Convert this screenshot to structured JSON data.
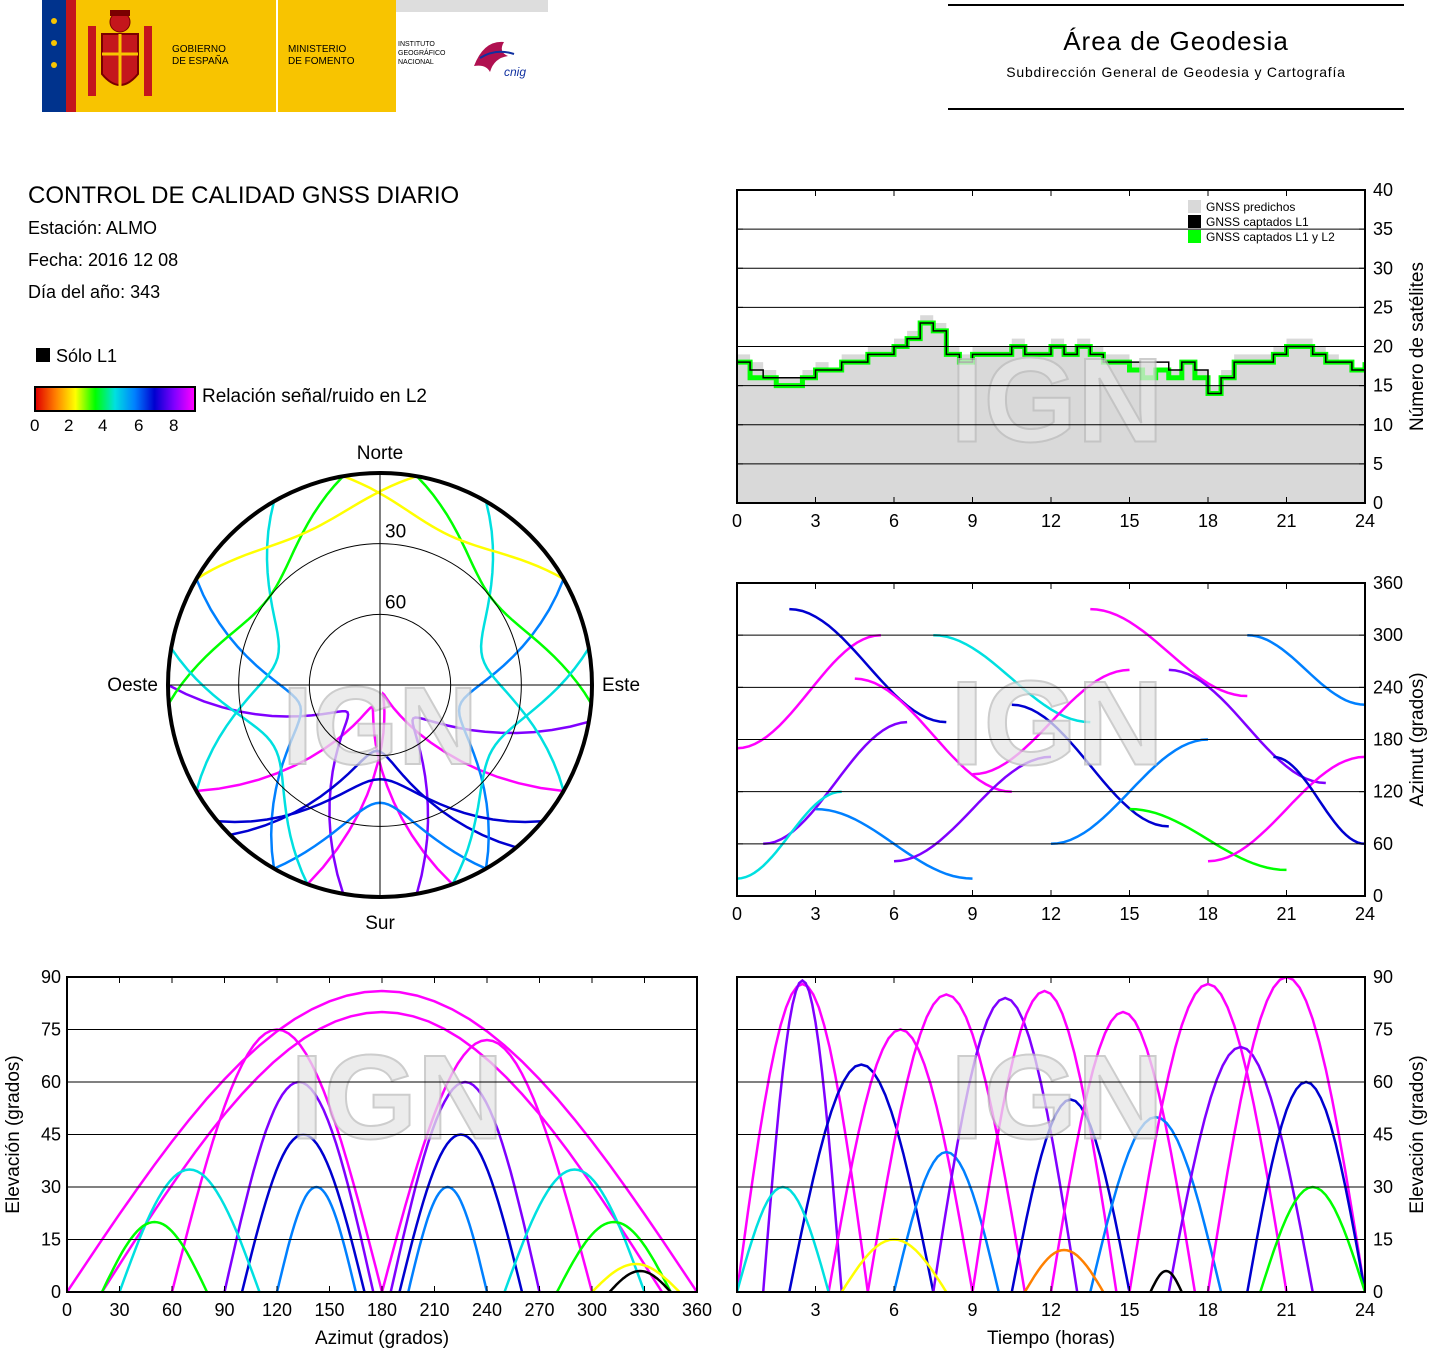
{
  "header": {
    "gob_line1": "GOBIERNO",
    "gob_line2": "DE ESPAÑA",
    "min_line1": "MINISTERIO",
    "min_line2": "DE FOMENTO",
    "ign_line1": "INSTITUTO",
    "ign_line2": "GEOGRÁFICO",
    "ign_line3": "NACIONAL",
    "cnig": "cnig",
    "area_title": "Área de Geodesia",
    "area_subtitle": "Subdirección General de Geodesia y Cartografía"
  },
  "info": {
    "title": "CONTROL DE CALIDAD GNSS DIARIO",
    "station": "Estación: ALMO",
    "date": "Fecha: 2016 12 08",
    "doy": "Día del año: 343"
  },
  "legend": {
    "only_l1": "Sólo L1",
    "snr_label": "Relación señal/ruido en L2",
    "snr_ticks": [
      "0",
      "2",
      "4",
      "6",
      "8"
    ]
  },
  "watermark": "IGN",
  "colors": {
    "predicted": "#d9d9d9",
    "l1": "#000000",
    "l1l2": "#00ff00",
    "snr_scale": [
      "#e00000",
      "#ff8000",
      "#ffff00",
      "#00ff00",
      "#00e0e0",
      "#0080ff",
      "#0000d0",
      "#8000ff",
      "#ff00ff"
    ]
  },
  "chart_data": [
    {
      "id": "satcount",
      "type": "area",
      "x": [
        0,
        0.5,
        1,
        1.5,
        2,
        2.5,
        3,
        3.5,
        4,
        4.5,
        5,
        5.5,
        6,
        6.5,
        7,
        7.5,
        8,
        8.5,
        9,
        9.5,
        10,
        10.5,
        11,
        11.5,
        12,
        12.5,
        13,
        13.5,
        14,
        14.5,
        15,
        15.5,
        16,
        16.5,
        17,
        17.5,
        18,
        18.5,
        19,
        19.5,
        20,
        20.5,
        21,
        21.5,
        22,
        22.5,
        23,
        23.5,
        24
      ],
      "series": [
        {
          "name": "GNSS predichos",
          "values": [
            19,
            18,
            17,
            16,
            16,
            17,
            18,
            17,
            19,
            19,
            20,
            20,
            21,
            22,
            24,
            23,
            20,
            19,
            20,
            20,
            20,
            21,
            20,
            20,
            21,
            20,
            21,
            20,
            19,
            19,
            18,
            18,
            17,
            17,
            18,
            17,
            15,
            17,
            19,
            19,
            19,
            20,
            21,
            21,
            20,
            19,
            18,
            17,
            18
          ]
        },
        {
          "name": "GNSS captados L1",
          "values": [
            18,
            17,
            16,
            16,
            16,
            16,
            17,
            17,
            18,
            18,
            19,
            19,
            20,
            21,
            23,
            22,
            19,
            18,
            19,
            19,
            19,
            20,
            19,
            19,
            20,
            19,
            20,
            19,
            18,
            18,
            18,
            18,
            18,
            17,
            18,
            17,
            14,
            16,
            18,
            18,
            18,
            19,
            20,
            20,
            19,
            18,
            18,
            17,
            18
          ]
        },
        {
          "name": "GNSS captados L1 y L2",
          "values": [
            18,
            16,
            16,
            15,
            15,
            16,
            17,
            17,
            18,
            18,
            19,
            19,
            20,
            21,
            23,
            22,
            19,
            18,
            19,
            19,
            19,
            20,
            19,
            19,
            20,
            19,
            20,
            19,
            18,
            18,
            17,
            16,
            17,
            16,
            18,
            16,
            14,
            16,
            18,
            18,
            18,
            19,
            20,
            20,
            19,
            18,
            18,
            17,
            18
          ]
        }
      ],
      "xlim": [
        0,
        24
      ],
      "ylim": [
        0,
        40
      ],
      "xticks": [
        "0",
        "3",
        "6",
        "9",
        "12",
        "15",
        "18",
        "21",
        "24"
      ],
      "yticks": [
        "0",
        "5",
        "10",
        "15",
        "20",
        "25",
        "30",
        "35",
        "40"
      ],
      "ylabel": "Número de satélites",
      "grid": true,
      "legend_position": "top-right"
    },
    {
      "id": "skyplot",
      "type": "scatter",
      "projection": "polar-azimuth-elevation",
      "labels": {
        "north": "Norte",
        "south": "Sur",
        "east": "Este",
        "west": "Oeste"
      },
      "rings": [
        "30",
        "60"
      ],
      "tracks": [
        {
          "az_start": 120,
          "az_end": 200,
          "el_max": 86,
          "snr": 8
        },
        {
          "az_start": 160,
          "az_end": 240,
          "el_max": 80,
          "snr": 8
        },
        {
          "az_start": 100,
          "az_end": 170,
          "el_max": 70,
          "snr": 7
        },
        {
          "az_start": 190,
          "az_end": 270,
          "el_max": 72,
          "snr": 7
        },
        {
          "az_start": 140,
          "az_end": 225,
          "el_max": 62,
          "snr": 6
        },
        {
          "az_start": 60,
          "az_end": 150,
          "el_max": 55,
          "snr": 5
        },
        {
          "az_start": 210,
          "az_end": 300,
          "el_max": 55,
          "snr": 5
        },
        {
          "az_start": 30,
          "az_end": 120,
          "el_max": 45,
          "snr": 4
        },
        {
          "az_start": 240,
          "az_end": 330,
          "el_max": 45,
          "snr": 4
        },
        {
          "az_start": 10,
          "az_end": 95,
          "el_max": 30,
          "snr": 3
        },
        {
          "az_start": 265,
          "az_end": 350,
          "el_max": 30,
          "snr": 3
        },
        {
          "az_start": 350,
          "az_end": 60,
          "el_max": 20,
          "snr": 2
        },
        {
          "az_start": 300,
          "az_end": 10,
          "el_max": 18,
          "snr": 2
        },
        {
          "az_start": 130,
          "az_end": 230,
          "el_max": 50,
          "snr": 6
        },
        {
          "az_start": 150,
          "az_end": 210,
          "el_max": 40,
          "snr": 5
        },
        {
          "az_start": 80,
          "az_end": 160,
          "el_max": 35,
          "snr": 4
        },
        {
          "az_start": 200,
          "az_end": 280,
          "el_max": 38,
          "snr": 4
        }
      ]
    },
    {
      "id": "azimuth_time",
      "type": "scatter",
      "xlim": [
        0,
        24
      ],
      "ylim": [
        0,
        360
      ],
      "xticks": [
        "0",
        "3",
        "6",
        "9",
        "12",
        "15",
        "18",
        "21",
        "24"
      ],
      "yticks": [
        "0",
        "60",
        "120",
        "180",
        "240",
        "300",
        "360"
      ],
      "ylabel": "Azimut (grados)",
      "grid": true,
      "tracks": [
        {
          "t0": 0.0,
          "t1": 5.5,
          "az0": 170,
          "az1": 300,
          "snr": 8
        },
        {
          "t0": 1.0,
          "t1": 6.5,
          "az0": 60,
          "az1": 200,
          "snr": 7
        },
        {
          "t0": 2.0,
          "t1": 8.0,
          "az0": 330,
          "az1": 200,
          "snr": 6
        },
        {
          "t0": 3.0,
          "t1": 9.0,
          "az0": 100,
          "az1": 20,
          "snr": 5
        },
        {
          "t0": 4.5,
          "t1": 10.5,
          "az0": 250,
          "az1": 120,
          "snr": 8
        },
        {
          "t0": 6.0,
          "t1": 12.0,
          "az0": 40,
          "az1": 160,
          "snr": 7
        },
        {
          "t0": 7.5,
          "t1": 13.5,
          "az0": 300,
          "az1": 200,
          "snr": 4
        },
        {
          "t0": 9.0,
          "t1": 15.0,
          "az0": 140,
          "az1": 260,
          "snr": 8
        },
        {
          "t0": 10.5,
          "t1": 16.5,
          "az0": 220,
          "az1": 80,
          "snr": 6
        },
        {
          "t0": 12.0,
          "t1": 18.0,
          "az0": 60,
          "az1": 180,
          "snr": 5
        },
        {
          "t0": 13.5,
          "t1": 19.5,
          "az0": 330,
          "az1": 230,
          "snr": 8
        },
        {
          "t0": 15.0,
          "t1": 21.0,
          "az0": 100,
          "az1": 30,
          "snr": 3
        },
        {
          "t0": 16.5,
          "t1": 22.5,
          "az0": 260,
          "az1": 130,
          "snr": 7
        },
        {
          "t0": 18.0,
          "t1": 24.0,
          "az0": 40,
          "az1": 160,
          "snr": 8
        },
        {
          "t0": 19.5,
          "t1": 24.0,
          "az0": 300,
          "az1": 220,
          "snr": 5
        },
        {
          "t0": 0.0,
          "t1": 4.0,
          "az0": 20,
          "az1": 120,
          "snr": 4
        },
        {
          "t0": 20.5,
          "t1": 24.0,
          "az0": 160,
          "az1": 60,
          "snr": 6
        }
      ]
    },
    {
      "id": "elevation_azimuth",
      "type": "scatter",
      "xlim": [
        0,
        360
      ],
      "ylim": [
        0,
        90
      ],
      "xticks": [
        "0",
        "30",
        "60",
        "90",
        "120",
        "150",
        "180",
        "210",
        "240",
        "270",
        "300",
        "330",
        "360"
      ],
      "yticks": [
        "0",
        "15",
        "30",
        "45",
        "60",
        "75",
        "90"
      ],
      "xlabel": "Azimut (grados)",
      "ylabel": "Elevación (grados)",
      "grid": true,
      "tracks": [
        {
          "az0": 0,
          "az1": 360,
          "el_max": 86,
          "snr": 8
        },
        {
          "az0": 20,
          "az1": 340,
          "el_max": 80,
          "snr": 8
        },
        {
          "az0": 60,
          "az1": 180,
          "el_max": 75,
          "snr": 8
        },
        {
          "az0": 180,
          "az1": 300,
          "el_max": 72,
          "snr": 8
        },
        {
          "az0": 90,
          "az1": 175,
          "el_max": 60,
          "snr": 7
        },
        {
          "az0": 185,
          "az1": 270,
          "el_max": 60,
          "snr": 7
        },
        {
          "az0": 100,
          "az1": 170,
          "el_max": 45,
          "snr": 6
        },
        {
          "az0": 190,
          "az1": 260,
          "el_max": 45,
          "snr": 6
        },
        {
          "az0": 120,
          "az1": 165,
          "el_max": 30,
          "snr": 5
        },
        {
          "az0": 195,
          "az1": 240,
          "el_max": 30,
          "snr": 5
        },
        {
          "az0": 30,
          "az1": 110,
          "el_max": 35,
          "snr": 4
        },
        {
          "az0": 250,
          "az1": 330,
          "el_max": 35,
          "snr": 4
        },
        {
          "az0": 20,
          "az1": 80,
          "el_max": 20,
          "snr": 3
        },
        {
          "az0": 280,
          "az1": 345,
          "el_max": 20,
          "snr": 3
        },
        {
          "az0": 300,
          "az1": 350,
          "el_max": 8,
          "snr": 2
        },
        {
          "az0": 310,
          "az1": 345,
          "el_max": 6,
          "snr": -1
        }
      ]
    },
    {
      "id": "elevation_time",
      "type": "scatter",
      "xlim": [
        0,
        24
      ],
      "ylim": [
        0,
        90
      ],
      "xticks": [
        "0",
        "3",
        "6",
        "9",
        "12",
        "15",
        "18",
        "21",
        "24"
      ],
      "yticks": [
        "0",
        "15",
        "30",
        "45",
        "60",
        "75",
        "90"
      ],
      "xlabel": "Tiempo (horas)",
      "ylabel": "Elevación (grados)",
      "grid": true,
      "tracks": [
        {
          "t0": 0.0,
          "t1": 5.0,
          "el_max": 88,
          "snr": 8
        },
        {
          "t0": 1.0,
          "t1": 4.0,
          "el_max": 89,
          "snr": 7
        },
        {
          "t0": 2.0,
          "t1": 7.5,
          "el_max": 65,
          "snr": 6
        },
        {
          "t0": 3.5,
          "t1": 9.0,
          "el_max": 75,
          "snr": 8
        },
        {
          "t0": 5.0,
          "t1": 11.0,
          "el_max": 85,
          "snr": 8
        },
        {
          "t0": 6.0,
          "t1": 10.0,
          "el_max": 40,
          "snr": 5
        },
        {
          "t0": 7.5,
          "t1": 13.0,
          "el_max": 84,
          "snr": 7
        },
        {
          "t0": 9.0,
          "t1": 14.5,
          "el_max": 86,
          "snr": 8
        },
        {
          "t0": 10.5,
          "t1": 15.0,
          "el_max": 55,
          "snr": 6
        },
        {
          "t0": 12.0,
          "t1": 17.5,
          "el_max": 80,
          "snr": 8
        },
        {
          "t0": 13.5,
          "t1": 18.5,
          "el_max": 50,
          "snr": 5
        },
        {
          "t0": 15.0,
          "t1": 21.0,
          "el_max": 88,
          "snr": 8
        },
        {
          "t0": 16.5,
          "t1": 22.0,
          "el_max": 70,
          "snr": 7
        },
        {
          "t0": 18.0,
          "t1": 24.0,
          "el_max": 90,
          "snr": 8
        },
        {
          "t0": 19.5,
          "t1": 24.0,
          "el_max": 60,
          "snr": 6
        },
        {
          "t0": 0.0,
          "t1": 3.5,
          "el_max": 30,
          "snr": 4
        },
        {
          "t0": 20.0,
          "t1": 24.0,
          "el_max": 30,
          "snr": 3
        },
        {
          "t0": 4.0,
          "t1": 8.0,
          "el_max": 15,
          "snr": 2
        },
        {
          "t0": 11.0,
          "t1": 14.0,
          "el_max": 12,
          "snr": 1
        },
        {
          "t0": 15.8,
          "t1": 17.0,
          "el_max": 6,
          "snr": -1
        }
      ]
    }
  ]
}
